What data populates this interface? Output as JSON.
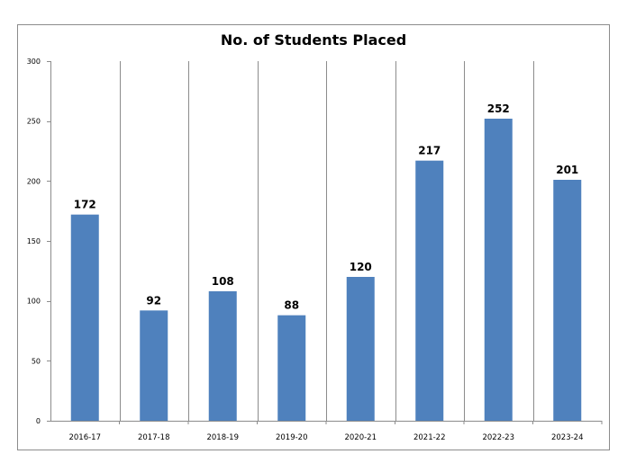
{
  "chart_data": {
    "type": "bar",
    "title": "No. of Students Placed",
    "xlabel": "",
    "ylabel": "",
    "categories": [
      "2016-17",
      "2017-18",
      "2018-19",
      "2019-20",
      "2020-21",
      "2021-22",
      "2022-23",
      "2023-24"
    ],
    "values": [
      172,
      92,
      108,
      88,
      120,
      217,
      252,
      201
    ],
    "ylim": [
      0,
      300
    ],
    "yticks": [
      "0",
      "50",
      "100",
      "150",
      "200",
      "250",
      "300"
    ],
    "grid": "vertical category dividers",
    "legend": "none",
    "bar_color": "#4f81bd",
    "data_labels": true
  }
}
